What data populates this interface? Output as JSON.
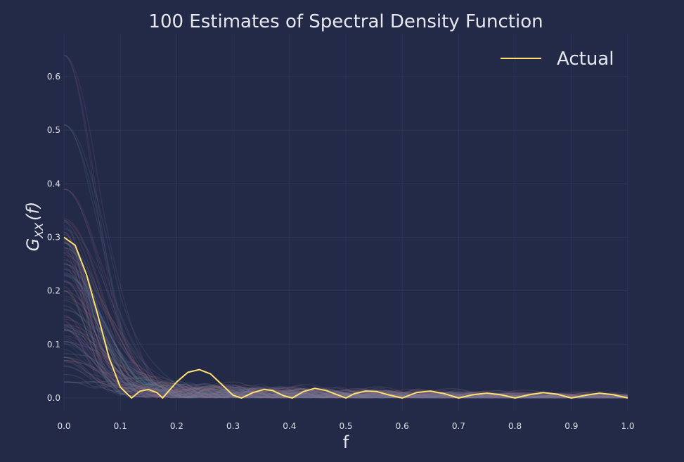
{
  "chart_data": {
    "type": "line",
    "title": "100 Estimates of Spectral Density Function",
    "xlabel": "f",
    "ylabel": "G_XX(f)",
    "ylabel_main": "G",
    "ylabel_sub": "XX",
    "ylabel_arg": "(f)",
    "xlim": [
      0.0,
      1.0
    ],
    "ylim": [
      -0.025,
      0.68
    ],
    "xticks": [
      "0.0",
      "0.1",
      "0.2",
      "0.3",
      "0.4",
      "0.5",
      "0.6",
      "0.7",
      "0.8",
      "0.9",
      "1.0"
    ],
    "yticks": [
      "0.0",
      "0.1",
      "0.2",
      "0.3",
      "0.4",
      "0.5",
      "0.6"
    ],
    "grid": true,
    "legend_position": "top-right",
    "series": [
      {
        "name": "Actual",
        "color": "#ffe070",
        "x": [
          0.0,
          0.02,
          0.04,
          0.06,
          0.08,
          0.1,
          0.12,
          0.135,
          0.15,
          0.165,
          0.175,
          0.2,
          0.22,
          0.24,
          0.26,
          0.28,
          0.3,
          0.315,
          0.335,
          0.355,
          0.37,
          0.39,
          0.405,
          0.425,
          0.445,
          0.465,
          0.48,
          0.5,
          0.515,
          0.535,
          0.555,
          0.575,
          0.6,
          0.625,
          0.65,
          0.675,
          0.7,
          0.725,
          0.75,
          0.775,
          0.8,
          0.825,
          0.85,
          0.875,
          0.9,
          0.925,
          0.95,
          0.975,
          1.0
        ],
        "y": [
          0.3,
          0.285,
          0.23,
          0.155,
          0.075,
          0.02,
          0.0,
          0.013,
          0.016,
          0.01,
          0.0,
          0.03,
          0.048,
          0.053,
          0.045,
          0.025,
          0.005,
          0.0,
          0.01,
          0.016,
          0.014,
          0.004,
          0.0,
          0.012,
          0.018,
          0.014,
          0.008,
          0.0,
          0.008,
          0.013,
          0.012,
          0.006,
          0.0,
          0.01,
          0.013,
          0.008,
          0.0,
          0.006,
          0.009,
          0.006,
          0.0,
          0.006,
          0.01,
          0.007,
          0.0,
          0.005,
          0.009,
          0.006,
          0.0
        ]
      }
    ],
    "estimates": {
      "count": 100,
      "colors": [
        "#7a5a8f",
        "#4e7b8c",
        "#8a5a7a",
        "#6c8aa6",
        "#9a7a6a",
        "#5a6a9a",
        "#b06a8a",
        "#7a8aa0"
      ],
      "peaks_at_zero": [
        0.64,
        0.51,
        0.39,
        0.29,
        0.2,
        0.127,
        0.07,
        0.03
      ]
    }
  }
}
